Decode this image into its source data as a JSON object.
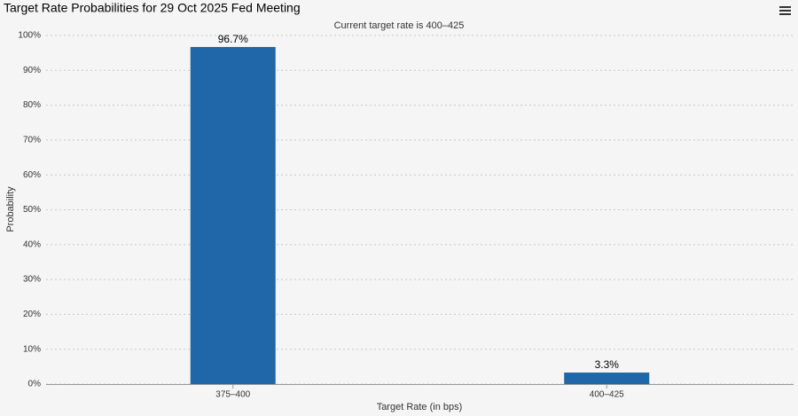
{
  "chart_data": {
    "type": "bar",
    "title": "Target Rate Probabilities for 29 Oct 2025 Fed Meeting",
    "subtitle": "Current target rate is 400–425",
    "x_label": "Target Rate (in bps)",
    "y_label": "Probability",
    "categories": [
      "375–400",
      "400–425"
    ],
    "values": [
      96.7,
      3.3
    ],
    "value_labels": [
      "96.7%",
      "3.3%"
    ],
    "color": "#1f67a8",
    "ylim": [
      0,
      100
    ],
    "yticks": [
      {
        "value": 0,
        "label": "0%"
      },
      {
        "value": 10,
        "label": "10%"
      },
      {
        "value": 20,
        "label": "20%"
      },
      {
        "value": 30,
        "label": "30%"
      },
      {
        "value": 40,
        "label": "40%"
      },
      {
        "value": 50,
        "label": "50%"
      },
      {
        "value": 60,
        "label": "60%"
      },
      {
        "value": 70,
        "label": "70%"
      },
      {
        "value": 80,
        "label": "80%"
      },
      {
        "value": 90,
        "label": "90%"
      },
      {
        "value": 100,
        "label": "100%"
      }
    ],
    "grid": true
  }
}
